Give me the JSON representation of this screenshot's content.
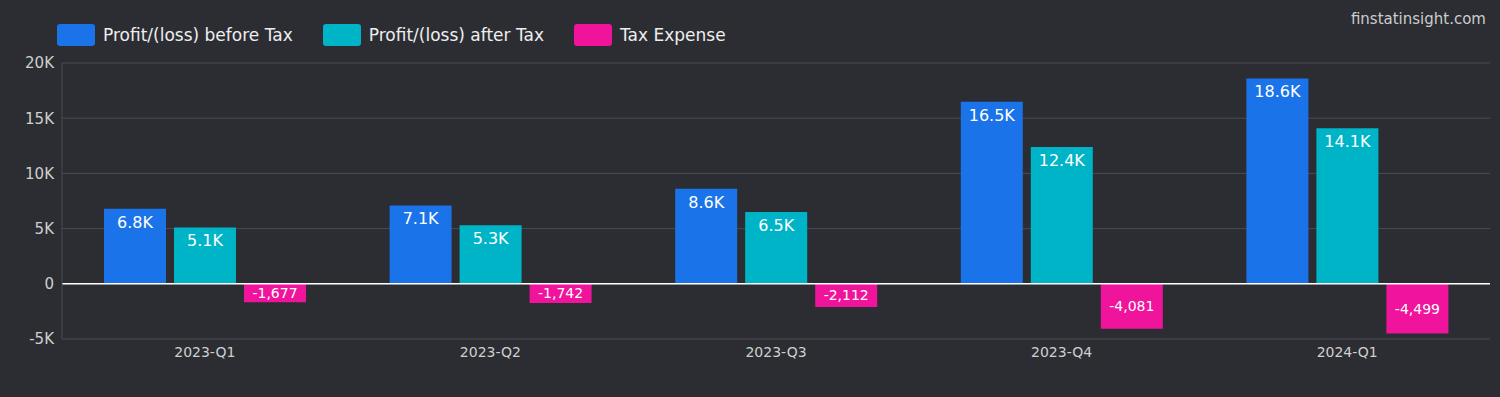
{
  "chart_data": {
    "type": "bar",
    "source": "finstatinsight.com",
    "categories": [
      "2023-Q1",
      "2023-Q2",
      "2023-Q3",
      "2023-Q4",
      "2024-Q1"
    ],
    "series": [
      {
        "name": "Profit/(loss) before Tax",
        "color": "#1a73e8",
        "values": [
          6800,
          7100,
          8600,
          16500,
          18600
        ],
        "value_labels": [
          "6.8K",
          "7.1K",
          "8.6K",
          "16.5K",
          "18.6K"
        ]
      },
      {
        "name": "Profit/(loss) after Tax",
        "color": "#00b4c8",
        "values": [
          5100,
          5300,
          6500,
          12400,
          14100
        ],
        "value_labels": [
          "5.1K",
          "5.3K",
          "6.5K",
          "12.4K",
          "14.1K"
        ]
      },
      {
        "name": "Tax Expense",
        "color": "#f0139b",
        "values": [
          -1677,
          -1742,
          -2112,
          -4081,
          -4499
        ],
        "value_labels": [
          "-1,677",
          "-1,742",
          "-2,112",
          "-4,081",
          "-4,499"
        ]
      }
    ],
    "ylim": [
      -5000,
      20000
    ],
    "yticks": [
      {
        "value": -5000,
        "label": "-5K"
      },
      0,
      {
        "value": 5000,
        "label": "5K"
      },
      {
        "value": 10000,
        "label": "10K"
      },
      {
        "value": 15000,
        "label": "15K"
      },
      {
        "value": 20000,
        "label": "20K"
      }
    ],
    "grid": true,
    "legend": "top-left",
    "data_labels": true
  }
}
